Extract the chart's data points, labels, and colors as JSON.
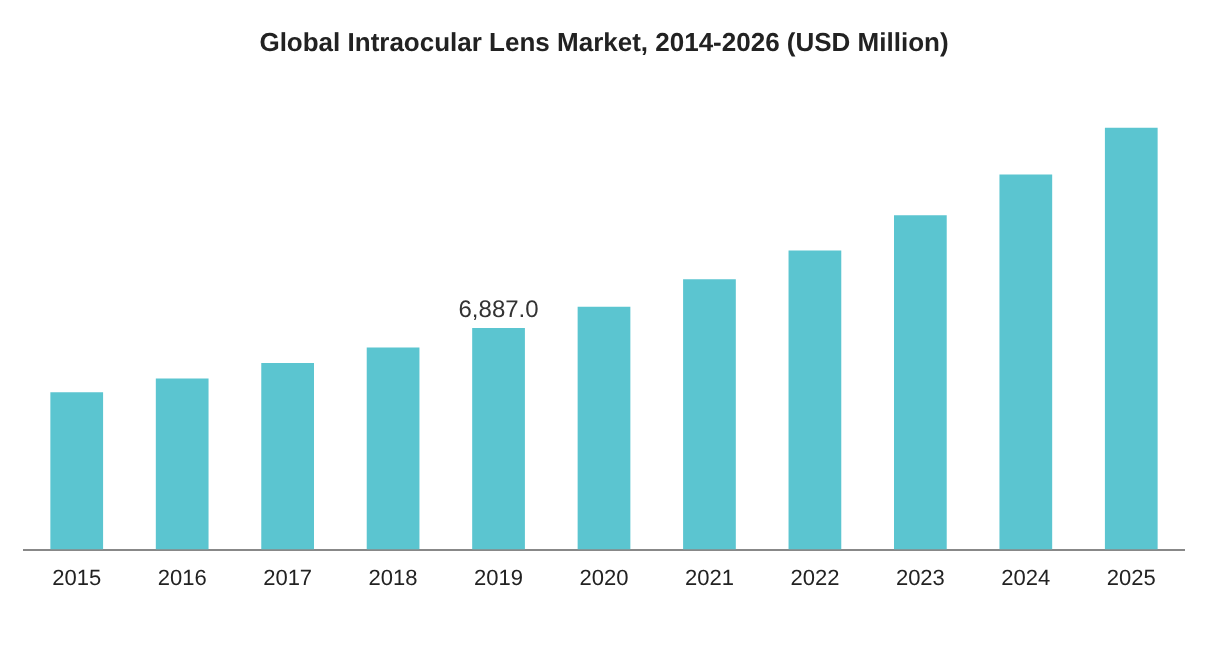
{
  "chart_data": {
    "type": "bar",
    "title": "Global Intraocular Lens Market, 2014-2026 (USD Million)",
    "categories": [
      "2015",
      "2016",
      "2017",
      "2018",
      "2019",
      "2020",
      "2021",
      "2022",
      "2023",
      "2024",
      "2025"
    ],
    "values": [
      4890,
      5320,
      5800,
      6280,
      6887.0,
      7550,
      8400,
      9300,
      10390,
      11660,
      13110
    ],
    "value_labels": [
      null,
      null,
      null,
      null,
      "6,887.0",
      null,
      null,
      null,
      null,
      null,
      null
    ],
    "color": "#5bc5d0",
    "grid": false,
    "legend": false
  }
}
